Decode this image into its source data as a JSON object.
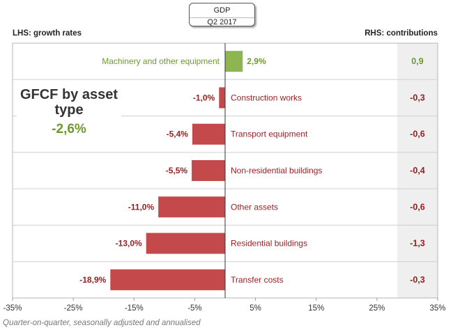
{
  "header": {
    "line1": "GDP",
    "line2": "Q2 2017"
  },
  "lhs_label": "LHS: growth rates",
  "rhs_label": "RHS: contributions",
  "footnote": "Quarter-on-quarter, seasonally adjusted and annualised",
  "panel": {
    "title": "GFCF by asset type",
    "value": "-2,6%"
  },
  "colors": {
    "positive": "#8db550",
    "negative": "#c4494b",
    "positive_text": "#6f9a2b",
    "negative_text": "#9b1c1f"
  },
  "chart_data": {
    "type": "bar",
    "orientation": "horizontal",
    "categories": [
      "Machinery and other equipment",
      "Construction works",
      "Transport equipment",
      "Non-residential buildings",
      "Other assets",
      "Residential buildings",
      "Transfer costs"
    ],
    "values": [
      2.9,
      -1.0,
      -5.4,
      -5.5,
      -11.0,
      -13.0,
      -18.9
    ],
    "value_labels": [
      "2,9%",
      "-1,0%",
      "-5,4%",
      "-5,5%",
      "-11,0%",
      "-13,0%",
      "-18,9%"
    ],
    "contributions": [
      0.9,
      -0.3,
      -0.6,
      -0.4,
      -0.6,
      -1.3,
      -0.3
    ],
    "contribution_labels": [
      "0,9",
      "-0,3",
      "-0,6",
      "-0,4",
      "-0,6",
      "-1,3",
      "-0,3"
    ],
    "xlim": [
      -35,
      35
    ],
    "xticks": [
      -35,
      -25,
      -15,
      -5,
      5,
      15,
      25,
      35
    ],
    "xtick_labels": [
      "-35%",
      "-25%",
      "-15%",
      "-5%",
      "5%",
      "15%",
      "25%",
      "35%"
    ],
    "grid": true
  }
}
